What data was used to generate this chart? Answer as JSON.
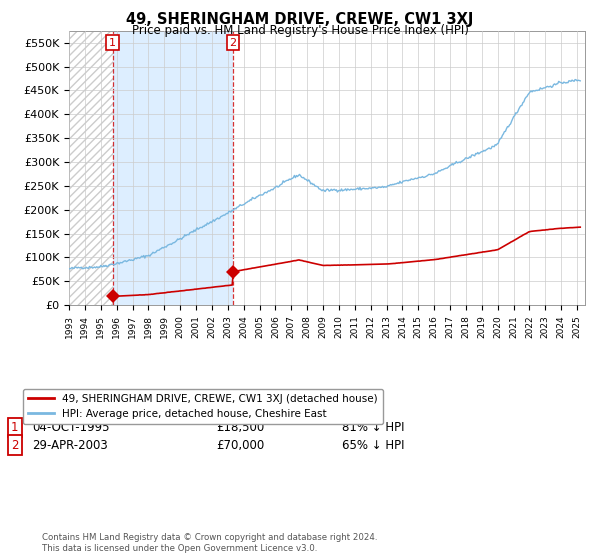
{
  "title": "49, SHERINGHAM DRIVE, CREWE, CW1 3XJ",
  "subtitle": "Price paid vs. HM Land Registry's House Price Index (HPI)",
  "hpi_color": "#7ab8e0",
  "property_color": "#cc0000",
  "purchase1_date": "04-OCT-1995",
  "purchase1_price": 18500,
  "purchase1_label": "£18,500",
  "purchase1_pct": "81% ↓ HPI",
  "purchase2_date": "29-APR-2003",
  "purchase2_price": 70000,
  "purchase2_label": "£70,000",
  "purchase2_pct": "65% ↓ HPI",
  "ylabel_ticks": [
    0,
    50000,
    100000,
    150000,
    200000,
    250000,
    300000,
    350000,
    400000,
    450000,
    500000,
    550000
  ],
  "ylabel_labels": [
    "£0",
    "£50K",
    "£100K",
    "£150K",
    "£200K",
    "£250K",
    "£300K",
    "£350K",
    "£400K",
    "£450K",
    "£500K",
    "£550K"
  ],
  "ylim": [
    0,
    575000
  ],
  "footer": "Contains HM Land Registry data © Crown copyright and database right 2024.\nThis data is licensed under the Open Government Licence v3.0.",
  "legend_property": "49, SHERINGHAM DRIVE, CREWE, CW1 3XJ (detached house)",
  "legend_hpi": "HPI: Average price, detached house, Cheshire East",
  "background_color": "#ffffff",
  "grid_color": "#cccccc",
  "shade_color": "#ddeeff",
  "t1": 1995.75,
  "t2": 2003.32,
  "p1": 18500,
  "p2": 70000
}
